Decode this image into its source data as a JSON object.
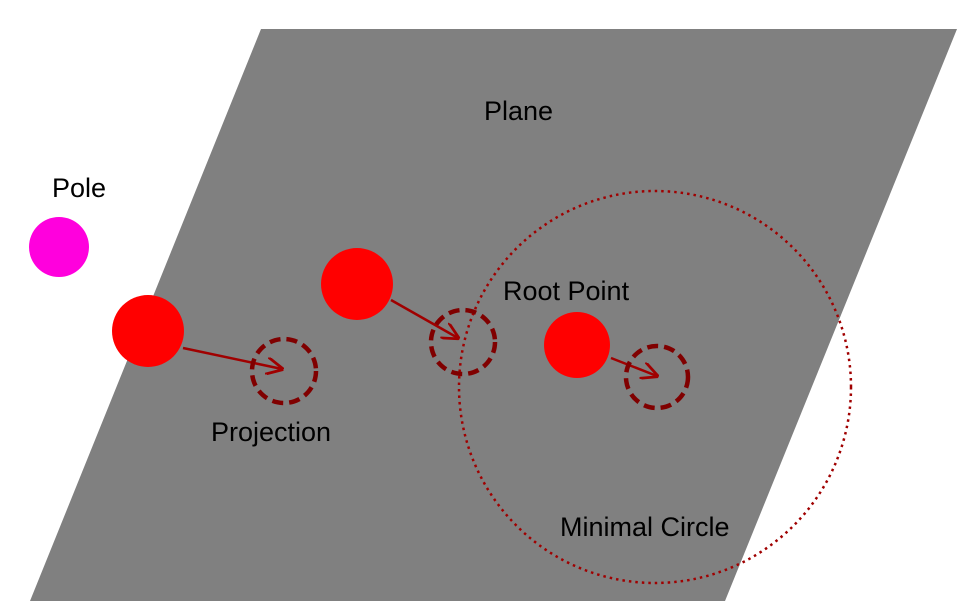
{
  "labels": {
    "plane": "Plane",
    "pole": "Pole",
    "root_point": "Root Point",
    "projection": "Projection",
    "minimal_circle": "Minimal Circle"
  },
  "colors": {
    "plane_fill": "#808080",
    "pole": "#ff00dd",
    "point": "#ff0000",
    "projection": "#800000",
    "arrow": "#a00000",
    "minimal_circle": "#a00000"
  }
}
